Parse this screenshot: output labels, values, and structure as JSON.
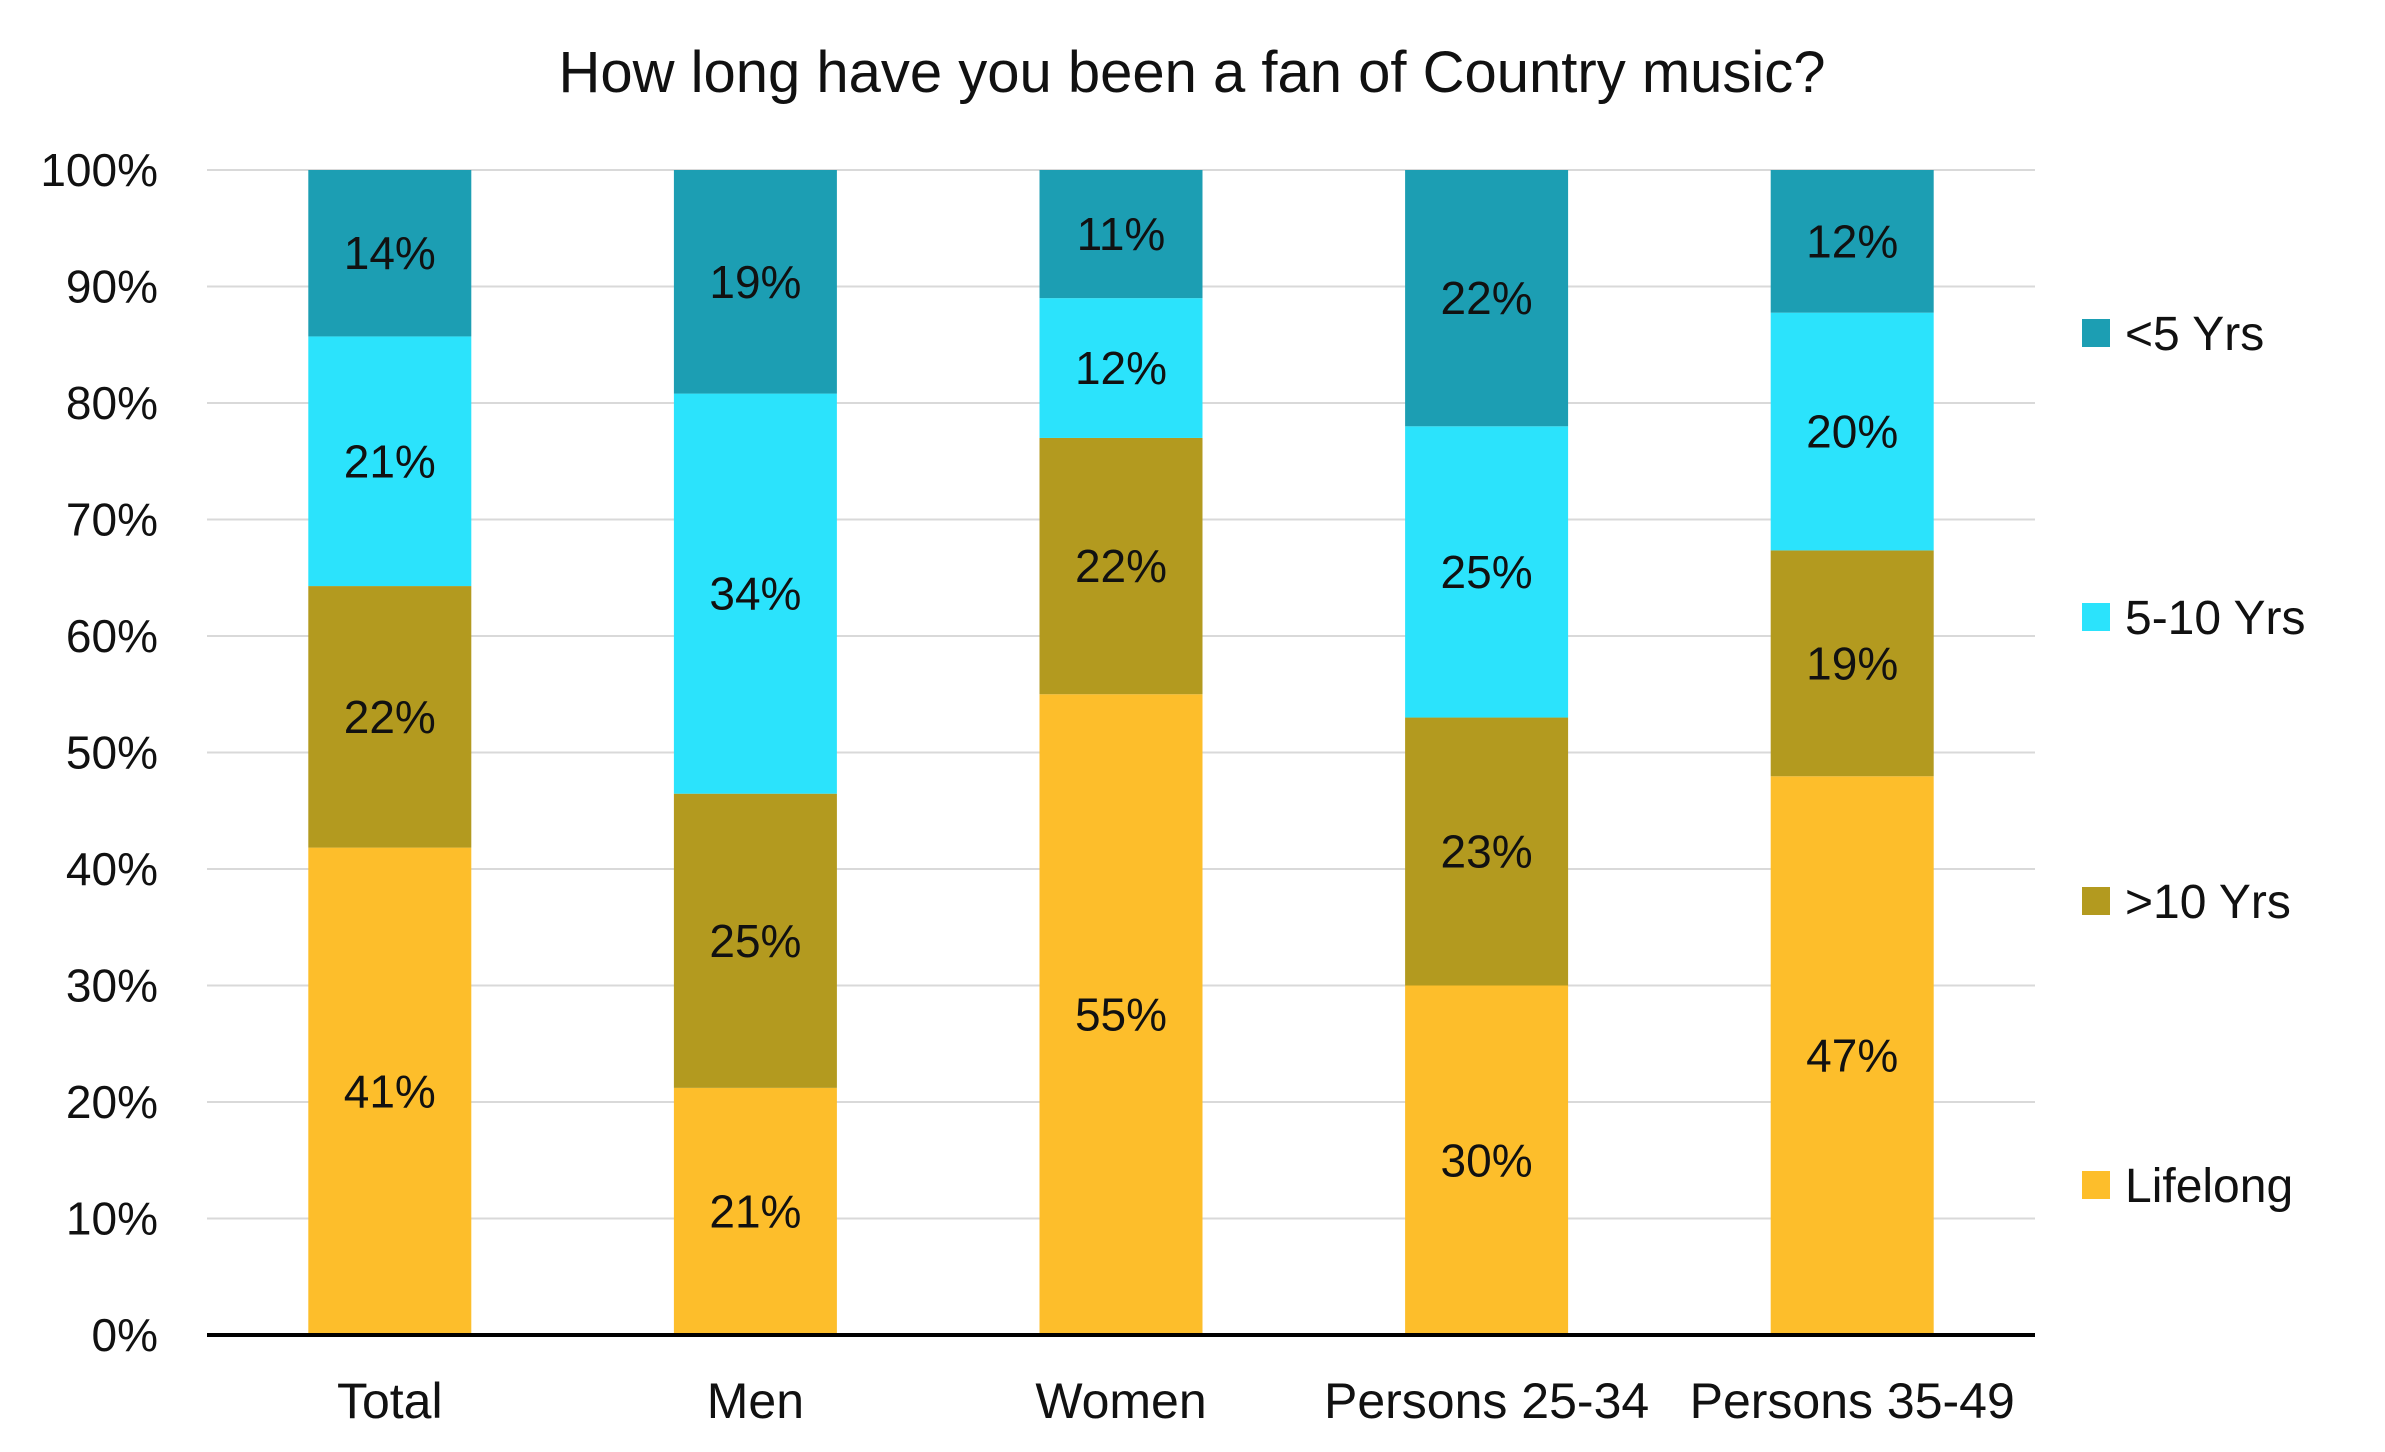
{
  "chart_data": {
    "type": "bar",
    "stacked": true,
    "title": "How long have you been a fan of Country music?",
    "xlabel": "",
    "ylabel": "",
    "ylim": [
      0,
      100
    ],
    "yticks": [
      "0%",
      "10%",
      "20%",
      "30%",
      "40%",
      "50%",
      "60%",
      "70%",
      "80%",
      "90%",
      "100%"
    ],
    "grid": true,
    "legend_position": "right",
    "categories": [
      "Total",
      "Men",
      "Women",
      "Persons 25-34",
      "Persons 35-49"
    ],
    "series": [
      {
        "name": "Lifelong",
        "color": "#FDBE2B",
        "values": [
          41,
          21,
          55,
          30,
          47
        ],
        "labels": [
          "41%",
          "21%",
          "55%",
          "30%",
          "47%"
        ]
      },
      {
        "name": ">10 Yrs",
        "color": "#B39A1F",
        "values": [
          22,
          25,
          22,
          23,
          19
        ],
        "labels": [
          "22%",
          "25%",
          "22%",
          "23%",
          "19%"
        ]
      },
      {
        "name": "5-10 Yrs",
        "color": "#2BE3FC",
        "values": [
          21,
          34,
          12,
          25,
          20
        ],
        "labels": [
          "21%",
          "34%",
          "12%",
          "25%",
          "20%"
        ]
      },
      {
        "name": "<5 Yrs",
        "color": "#1C9EB3",
        "values": [
          14,
          19,
          11,
          22,
          12
        ],
        "labels": [
          "14%",
          "19%",
          "11%",
          "22%",
          "12%"
        ]
      }
    ]
  }
}
